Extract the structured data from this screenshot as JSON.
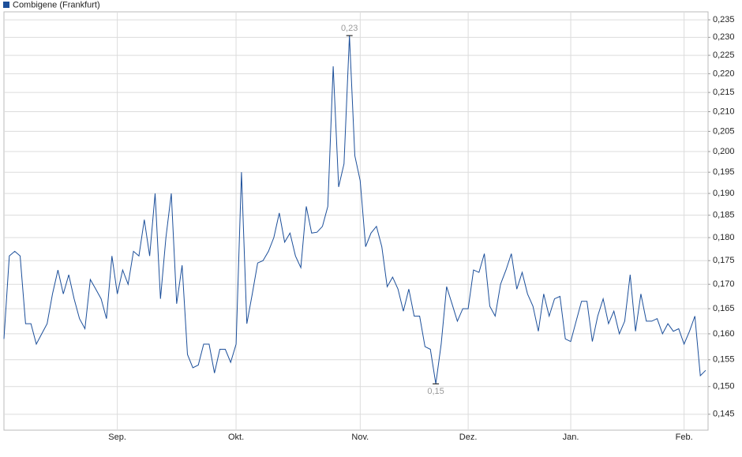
{
  "chart_data": {
    "type": "line",
    "series": [
      {
        "name": "Combigene (Frankfurt)",
        "color": "#1c4f9a",
        "values": [
          0.159,
          0.176,
          0.177,
          0.176,
          0.162,
          0.162,
          0.158,
          0.16,
          0.162,
          0.168,
          0.173,
          0.168,
          0.172,
          0.167,
          0.163,
          0.161,
          0.171,
          0.169,
          0.167,
          0.163,
          0.176,
          0.168,
          0.173,
          0.17,
          0.177,
          0.176,
          0.184,
          0.176,
          0.19,
          0.167,
          0.18,
          0.19,
          0.166,
          0.174,
          0.156,
          0.1535,
          0.154,
          0.158,
          0.158,
          0.1525,
          0.157,
          0.157,
          0.1545,
          0.158,
          0.195,
          0.162,
          0.168,
          0.1745,
          0.175,
          0.177,
          0.18,
          0.1855,
          0.179,
          0.181,
          0.176,
          0.1735,
          0.187,
          0.181,
          0.1812,
          0.1825,
          0.187,
          0.222,
          0.1915,
          0.197,
          0.2305,
          0.199,
          0.193,
          0.178,
          0.181,
          0.1825,
          0.178,
          0.1695,
          0.1715,
          0.169,
          0.1645,
          0.169,
          0.1635,
          0.1635,
          0.1575,
          0.157,
          0.1505,
          0.158,
          0.1695,
          0.166,
          0.1625,
          0.165,
          0.165,
          0.173,
          0.1725,
          0.1765,
          0.1655,
          0.1635,
          0.17,
          0.173,
          0.1765,
          0.169,
          0.1725,
          0.168,
          0.1655,
          0.1605,
          0.168,
          0.1635,
          0.167,
          0.1675,
          0.159,
          0.1585,
          0.1625,
          0.1665,
          0.1665,
          0.1585,
          0.1635,
          0.167,
          0.162,
          0.1645,
          0.16,
          0.1625,
          0.172,
          0.1605,
          0.168,
          0.1625,
          0.1625,
          0.163,
          0.16,
          0.162,
          0.1605,
          0.161,
          0.158,
          0.1605,
          0.1635,
          0.152,
          0.153
        ],
        "value_labels": [
          null,
          null,
          null,
          null,
          null,
          null,
          null,
          null,
          null,
          null,
          null,
          null,
          null,
          null,
          null,
          null,
          null,
          null,
          null,
          null,
          null,
          null,
          null,
          null,
          null,
          null,
          null,
          null,
          null,
          null,
          null,
          null,
          null,
          null,
          null,
          null,
          null,
          null,
          null,
          null,
          null,
          null,
          null,
          null,
          null,
          null,
          null,
          null,
          null,
          null,
          null,
          null,
          null,
          null,
          null,
          null,
          null,
          null,
          null,
          null,
          null,
          null,
          null,
          null,
          "0,23",
          null,
          null,
          null,
          null,
          null,
          null,
          null,
          null,
          null,
          null,
          null,
          null,
          null,
          null,
          null,
          "0,15",
          null,
          null,
          null,
          null,
          null,
          null,
          null,
          null,
          null,
          null,
          null,
          null,
          null,
          null,
          null,
          null,
          null,
          null,
          null,
          null,
          null,
          null,
          null,
          null,
          null,
          null,
          null,
          null,
          null,
          null,
          null,
          null,
          null,
          null,
          null,
          null,
          null,
          null,
          null,
          null,
          null,
          null,
          null,
          null,
          null,
          null,
          null,
          null,
          null,
          null
        ]
      }
    ],
    "categories": [
      null,
      null,
      null,
      null,
      null,
      null,
      null,
      null,
      null,
      null,
      null,
      null,
      null,
      null,
      null,
      null,
      null,
      null,
      null,
      null,
      null,
      "Sep.",
      null,
      null,
      null,
      null,
      null,
      null,
      null,
      null,
      null,
      null,
      null,
      null,
      null,
      null,
      null,
      null,
      null,
      null,
      null,
      null,
      null,
      "Okt.",
      null,
      null,
      null,
      null,
      null,
      null,
      null,
      null,
      null,
      null,
      null,
      null,
      null,
      null,
      null,
      null,
      null,
      null,
      null,
      null,
      null,
      null,
      "Nov.",
      null,
      null,
      null,
      null,
      null,
      null,
      null,
      null,
      null,
      null,
      null,
      null,
      null,
      null,
      null,
      null,
      null,
      null,
      null,
      "Dez.",
      null,
      null,
      null,
      null,
      null,
      null,
      null,
      null,
      null,
      null,
      null,
      null,
      null,
      null,
      null,
      null,
      null,
      null,
      "Jan.",
      null,
      null,
      null,
      null,
      null,
      null,
      null,
      null,
      null,
      null,
      null,
      null,
      null,
      null,
      null,
      null,
      null,
      null,
      null,
      null,
      "Feb.",
      null,
      null,
      null,
      null
    ],
    "log": true,
    "grid": true,
    "ylim": [
      0.1422,
      0.2373
    ],
    "yticks": [
      {
        "value": 0.145,
        "label": "0,145"
      },
      {
        "value": 0.15,
        "label": "0,150"
      },
      {
        "value": 0.155,
        "label": "0,155"
      },
      {
        "value": 0.16,
        "label": "0,160"
      },
      {
        "value": 0.165,
        "label": "0,165"
      },
      {
        "value": 0.17,
        "label": "0,170"
      },
      {
        "value": 0.175,
        "label": "0,175"
      },
      {
        "value": 0.18,
        "label": "0,180"
      },
      {
        "value": 0.185,
        "label": "0,185"
      },
      {
        "value": 0.19,
        "label": "0,190"
      },
      {
        "value": 0.195,
        "label": "0,195"
      },
      {
        "value": 0.2,
        "label": "0,200"
      },
      {
        "value": 0.205,
        "label": "0,205"
      },
      {
        "value": 0.21,
        "label": "0,210"
      },
      {
        "value": 0.215,
        "label": "0,215"
      },
      {
        "value": 0.22,
        "label": "0,220"
      },
      {
        "value": 0.225,
        "label": "0,225"
      },
      {
        "value": 0.23,
        "label": "0,230"
      },
      {
        "value": 0.235,
        "label": "0,235"
      }
    ],
    "legend": "top-left"
  }
}
